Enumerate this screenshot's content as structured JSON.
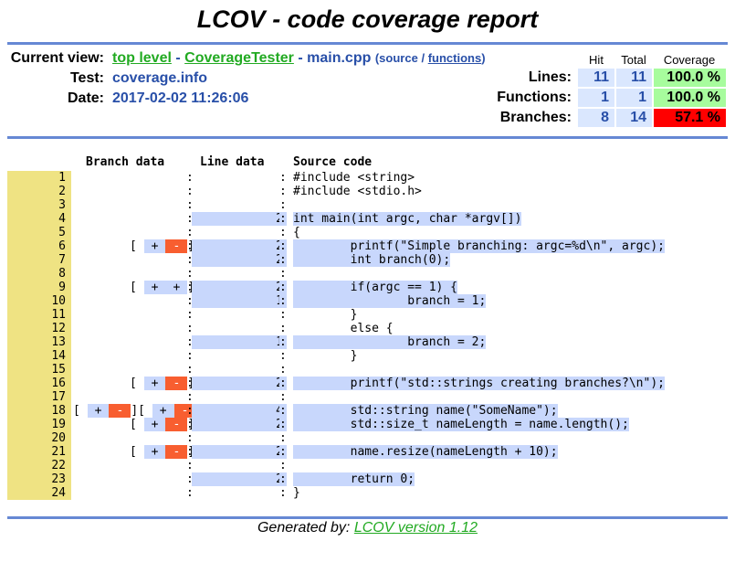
{
  "title": "LCOV - code coverage report",
  "header": {
    "current_view_label": "Current view:",
    "crumbs": [
      "top level",
      "CoverageTester"
    ],
    "sep": "-",
    "file": "main.cpp",
    "source_link": "source",
    "slash": "/",
    "functions_link": "functions",
    "test_label": "Test:",
    "test_value": "coverage.info",
    "date_label": "Date:",
    "date_value": "2017-02-02 11:26:06"
  },
  "summary": {
    "col_hit": "Hit",
    "col_total": "Total",
    "col_coverage": "Coverage",
    "rows": [
      {
        "label": "Lines:",
        "hit": "11",
        "total": "11",
        "coverage": "100.0 %",
        "level": "high"
      },
      {
        "label": "Functions:",
        "hit": "1",
        "total": "1",
        "coverage": "100.0 %",
        "level": "high"
      },
      {
        "label": "Branches:",
        "hit": "8",
        "total": "14",
        "coverage": "57.1 %",
        "level": "low"
      }
    ],
    "colors": {
      "high": "#a7fc9d",
      "low": "#ff0000",
      "number_bg": "#dae7fe"
    }
  },
  "source": {
    "branch_header": "Branch data",
    "line_header": "Line data",
    "code_header": "Source code",
    "lines": [
      {
        "n": "1",
        "br": [],
        "hits": "",
        "code": "#include <string>"
      },
      {
        "n": "2",
        "br": [],
        "hits": "",
        "code": "#include <stdio.h>"
      },
      {
        "n": "3",
        "br": [],
        "hits": "",
        "code": ""
      },
      {
        "n": "4",
        "br": [],
        "hits": "2",
        "code": "int main(int argc, char *argv[])"
      },
      {
        "n": "5",
        "br": [],
        "hits": "",
        "code": "{"
      },
      {
        "n": "6",
        "br": [
          [
            "+",
            "-"
          ]
        ],
        "hits": "2",
        "code": "        printf(\"Simple branching: argc=%d\\n\", argc);"
      },
      {
        "n": "7",
        "br": [],
        "hits": "2",
        "code": "        int branch(0);"
      },
      {
        "n": "8",
        "br": [],
        "hits": "",
        "code": ""
      },
      {
        "n": "9",
        "br": [
          [
            "+",
            "+"
          ]
        ],
        "hits": "2",
        "code": "        if(argc == 1) {"
      },
      {
        "n": "10",
        "br": [],
        "hits": "1",
        "code": "                branch = 1;"
      },
      {
        "n": "11",
        "br": [],
        "hits": "",
        "code": "        }"
      },
      {
        "n": "12",
        "br": [],
        "hits": "",
        "code": "        else {"
      },
      {
        "n": "13",
        "br": [],
        "hits": "1",
        "code": "                branch = 2;"
      },
      {
        "n": "14",
        "br": [],
        "hits": "",
        "code": "        }"
      },
      {
        "n": "15",
        "br": [],
        "hits": "",
        "code": ""
      },
      {
        "n": "16",
        "br": [
          [
            "+",
            "-"
          ]
        ],
        "hits": "2",
        "code": "        printf(\"std::strings creating branches?\\n\");"
      },
      {
        "n": "17",
        "br": [],
        "hits": "",
        "code": ""
      },
      {
        "n": "18",
        "br": [
          [
            "+",
            "-"
          ],
          [
            "+",
            "-"
          ]
        ],
        "hits": "4",
        "code": "        std::string name(\"SomeName\");"
      },
      {
        "n": "19",
        "br": [
          [
            "+",
            "-"
          ]
        ],
        "hits": "2",
        "code": "        std::size_t nameLength = name.length();"
      },
      {
        "n": "20",
        "br": [],
        "hits": "",
        "code": ""
      },
      {
        "n": "21",
        "br": [
          [
            "+",
            "-"
          ]
        ],
        "hits": "2",
        "code": "        name.resize(nameLength + 10);"
      },
      {
        "n": "22",
        "br": [],
        "hits": "",
        "code": ""
      },
      {
        "n": "23",
        "br": [],
        "hits": "2",
        "code": "        return 0;"
      },
      {
        "n": "24",
        "br": [],
        "hits": "",
        "code": "}"
      }
    ]
  },
  "footer": {
    "prefix": "Generated by:",
    "link": "LCOV version 1.12"
  }
}
